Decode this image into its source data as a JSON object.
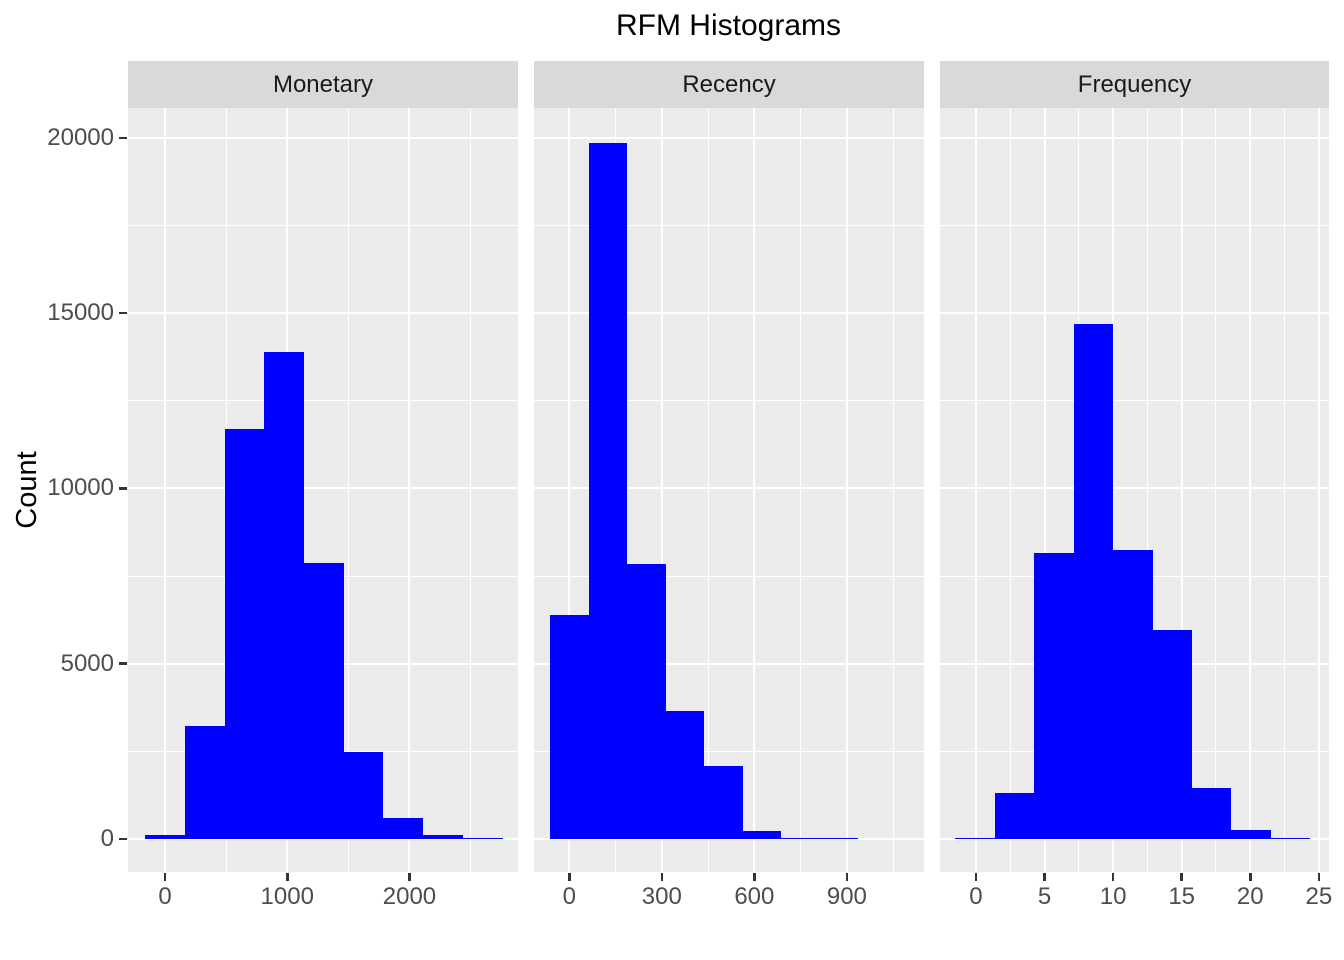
{
  "chart_data": {
    "type": "bar",
    "subtype": "faceted-histogram",
    "title": "RFM Histograms",
    "ylabel": "Count",
    "xlabel": "",
    "grid": true,
    "legend": "none",
    "bar_color": "#0000FF",
    "panel_bg": "#EBEBEB",
    "strip_bg": "#D9D9D9",
    "gridline_color": "#ffffff",
    "tick_color": "#333333",
    "axis_text_color": "#4d4d4d",
    "strip_text_color": "#1a1a1a",
    "y_axis": {
      "ylim": [
        -941,
        20853
      ],
      "ticks": [
        0,
        5000,
        10000,
        15000,
        20000
      ],
      "tick_labels": [
        "0",
        "5000",
        "10000",
        "15000",
        "20000"
      ],
      "minor_ticks": [
        2500,
        7500,
        12500,
        17500
      ]
    },
    "facets": [
      {
        "label": "Monetary",
        "xlim": [
          -303,
          2888
        ],
        "x_ticks": [
          0,
          1000,
          2000
        ],
        "x_tick_labels": [
          "0",
          "1000",
          "2000"
        ],
        "x_minor_ticks": [
          500,
          1500,
          2500
        ],
        "bin_width": 325,
        "bins": [
          {
            "x0": -162.5,
            "x1": 162.5,
            "count": 120
          },
          {
            "x0": 162.5,
            "x1": 487.5,
            "count": 3220
          },
          {
            "x0": 487.5,
            "x1": 812.5,
            "count": 11700
          },
          {
            "x0": 812.5,
            "x1": 1137.5,
            "count": 13900
          },
          {
            "x0": 1137.5,
            "x1": 1462.5,
            "count": 7880
          },
          {
            "x0": 1462.5,
            "x1": 1787.5,
            "count": 2480
          },
          {
            "x0": 1787.5,
            "x1": 2112.5,
            "count": 600
          },
          {
            "x0": 2112.5,
            "x1": 2437.5,
            "count": 120
          },
          {
            "x0": 2437.5,
            "x1": 2762.5,
            "count": 30
          }
        ]
      },
      {
        "label": "Recency",
        "xlim": [
          -114.5,
          1150
        ],
        "x_ticks": [
          0,
          300,
          600,
          900
        ],
        "x_tick_labels": [
          "0",
          "300",
          "600",
          "900"
        ],
        "x_minor_ticks": [
          150,
          450,
          750,
          1050
        ],
        "bin_width": 125,
        "bins": [
          {
            "x0": -62.5,
            "x1": 62.5,
            "count": 6400
          },
          {
            "x0": 62.5,
            "x1": 187.5,
            "count": 19860
          },
          {
            "x0": 187.5,
            "x1": 312.5,
            "count": 7840
          },
          {
            "x0": 312.5,
            "x1": 437.5,
            "count": 3640
          },
          {
            "x0": 437.5,
            "x1": 562.5,
            "count": 2070
          },
          {
            "x0": 562.5,
            "x1": 687.5,
            "count": 220
          },
          {
            "x0": 687.5,
            "x1": 812.5,
            "count": 30
          },
          {
            "x0": 812.5,
            "x1": 937.5,
            "count": 15
          }
        ]
      },
      {
        "label": "Frequency",
        "xlim": [
          -2.62,
          25.74
        ],
        "x_ticks": [
          0,
          5,
          10,
          15,
          20,
          25
        ],
        "x_tick_labels": [
          "0",
          "5",
          "10",
          "15",
          "20",
          "25"
        ],
        "x_minor_ticks": [
          2.5,
          7.5,
          12.5,
          17.5,
          22.5
        ],
        "bin_width": 2.875,
        "bins": [
          {
            "x0": -1.5,
            "x1": 1.375,
            "count": 30
          },
          {
            "x0": 1.375,
            "x1": 4.25,
            "count": 1310
          },
          {
            "x0": 4.25,
            "x1": 7.125,
            "count": 8160
          },
          {
            "x0": 7.125,
            "x1": 10.0,
            "count": 14700
          },
          {
            "x0": 10.0,
            "x1": 12.875,
            "count": 8250
          },
          {
            "x0": 12.875,
            "x1": 15.75,
            "count": 5970
          },
          {
            "x0": 15.75,
            "x1": 18.625,
            "count": 1450
          },
          {
            "x0": 18.625,
            "x1": 21.5,
            "count": 265
          },
          {
            "x0": 21.5,
            "x1": 24.375,
            "count": 30
          }
        ]
      }
    ]
  }
}
